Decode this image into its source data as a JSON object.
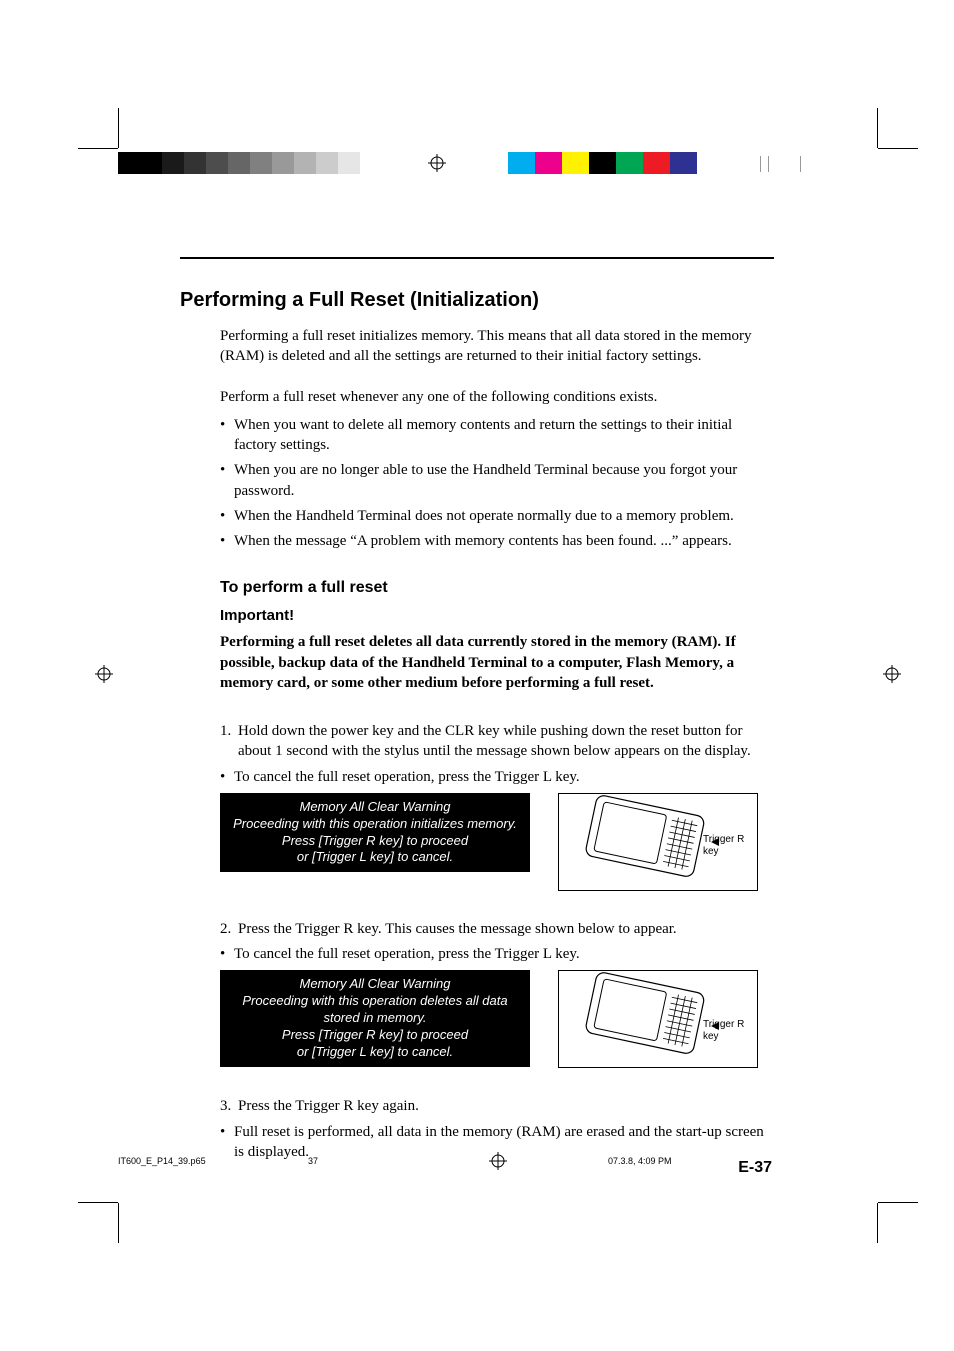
{
  "print": {
    "grayscale": [
      "#000000",
      "#000000",
      "#1a1a1a",
      "#333333",
      "#4d4d4d",
      "#666666",
      "#808080",
      "#999999",
      "#b3b3b3",
      "#cccccc",
      "#e6e6e6",
      "#ffffff"
    ],
    "colors": [
      "#00aeef",
      "#ec008c",
      "#fff200",
      "#000000",
      "#00a651",
      "#ed1c24",
      "#2e3192",
      "#ffffff"
    ]
  },
  "page": {
    "h1": "Performing a Full Reset (Initialization)",
    "intro": "Performing a full reset initializes memory. This means that all data stored in the memory (RAM) is deleted and all the settings are returned to their initial factory settings.",
    "cond_intro": "Perform a full reset whenever any one of the following conditions exists.",
    "bullets1": [
      "When you want to delete all memory contents and return the settings to their initial factory settings.",
      "When you are no longer able to use the Handheld Terminal because you forgot your password.",
      "When the Handheld Terminal does not operate normally due to a memory problem.",
      "When the message “A problem with memory contents has been found. ...” appears."
    ],
    "h2": "To perform a full reset",
    "important": "Important!",
    "warning": "Performing a full reset deletes all data currently stored in the memory (RAM). If possible, backup data of the Handheld Terminal to a computer, Flash Memory, a memory card, or some other medium before performing a full reset.",
    "step1_num": "1.",
    "step1": "Hold down the power key and the CLR key while pushing down the reset button for about 1 second with the stylus until the message shown below appears on the display.",
    "cancel1": "To cancel the full reset operation, press the Trigger L key.",
    "screen1": {
      "l1": "Memory All Clear Warning",
      "l2": "Proceeding with this operation initializes memory.",
      "l3": "Press [Trigger R key] to proceed",
      "l4": "or [Trigger L key] to cancel."
    },
    "device_label": "Trigger R key",
    "step2_num": "2.",
    "step2": "Press the Trigger R key. This causes the message shown below to appear.",
    "cancel2": "To cancel the full reset operation, press the Trigger L key.",
    "screen2": {
      "l1": "Memory All Clear Warning",
      "l2": "Proceeding with this operation deletes all data",
      "l3": "stored in memory.",
      "l4": "Press [Trigger R key] to proceed",
      "l5": "or [Trigger L key] to cancel."
    },
    "step3_num": "3.",
    "step3": "Press the Trigger R key again.",
    "result": "Full reset is performed, all data in the memory (RAM) are erased and the start-up screen is displayed.",
    "page_num": "E-37"
  },
  "footer": {
    "fname": "IT600_E_P14_39.p65",
    "fpage": "37",
    "fts": "07.3.8, 4:09 PM"
  }
}
